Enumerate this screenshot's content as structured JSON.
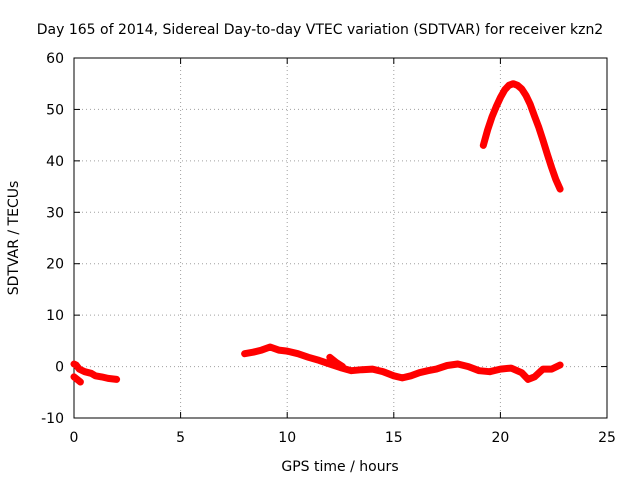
{
  "chart_data": {
    "type": "scatter",
    "title": "Day 165 of 2014, Sidereal Day-to-day VTEC variation (SDTVAR) for receiver kzn2",
    "xlabel": "GPS time / hours",
    "ylabel": "SDTVAR / TECUs",
    "xlim": [
      0,
      25
    ],
    "ylim": [
      -10,
      60
    ],
    "xticks": [
      0,
      5,
      10,
      15,
      20,
      25
    ],
    "yticks": [
      -10,
      0,
      10,
      20,
      30,
      40,
      50,
      60
    ],
    "grid": true,
    "legend": "none",
    "color": "#ff0000",
    "series": [
      {
        "name": "segment-1",
        "x": [
          0.0,
          0.1,
          0.25,
          0.5,
          0.8,
          1.0,
          1.3,
          1.6,
          2.0
        ],
        "y": [
          0.5,
          0.3,
          -0.5,
          -1.0,
          -1.3,
          -1.8,
          -2.0,
          -2.3,
          -2.5
        ]
      },
      {
        "name": "segment-1b",
        "x": [
          0.0,
          0.15,
          0.3
        ],
        "y": [
          -2.0,
          -2.5,
          -3.0
        ]
      },
      {
        "name": "segment-2",
        "x": [
          8.0,
          8.4,
          8.8,
          9.2,
          9.6,
          10.0,
          10.5,
          11.0,
          11.5,
          12.0,
          12.5,
          13.0,
          13.5,
          14.0,
          14.5,
          15.0,
          15.4,
          15.8,
          16.2,
          16.6,
          17.0,
          17.5,
          18.0,
          18.5,
          19.0,
          19.5,
          20.0,
          20.5,
          21.0,
          21.3,
          21.6,
          22.0,
          22.4,
          22.8
        ],
        "y": [
          2.5,
          2.8,
          3.2,
          3.8,
          3.2,
          3.0,
          2.5,
          1.8,
          1.2,
          0.5,
          -0.2,
          -0.8,
          -0.6,
          -0.5,
          -1.0,
          -1.8,
          -2.2,
          -1.8,
          -1.2,
          -0.8,
          -0.5,
          0.2,
          0.5,
          0.0,
          -0.8,
          -1.0,
          -0.5,
          -0.3,
          -1.2,
          -2.5,
          -2.0,
          -0.5,
          -0.5,
          0.3
        ]
      },
      {
        "name": "segment-2b",
        "x": [
          12.0,
          12.3,
          12.6
        ],
        "y": [
          1.8,
          0.8,
          0.0
        ]
      },
      {
        "name": "segment-3",
        "x": [
          19.2,
          19.4,
          19.6,
          19.8,
          20.0,
          20.2,
          20.4,
          20.6,
          20.8,
          21.0,
          21.2,
          21.4,
          21.6,
          21.8,
          22.0,
          22.2,
          22.4,
          22.6,
          22.8
        ],
        "y": [
          43,
          46,
          48.5,
          50.5,
          52.3,
          53.8,
          54.7,
          55.0,
          54.7,
          54.0,
          52.7,
          51.0,
          48.7,
          46.5,
          44.0,
          41.3,
          38.7,
          36.4,
          34.5
        ]
      }
    ]
  }
}
